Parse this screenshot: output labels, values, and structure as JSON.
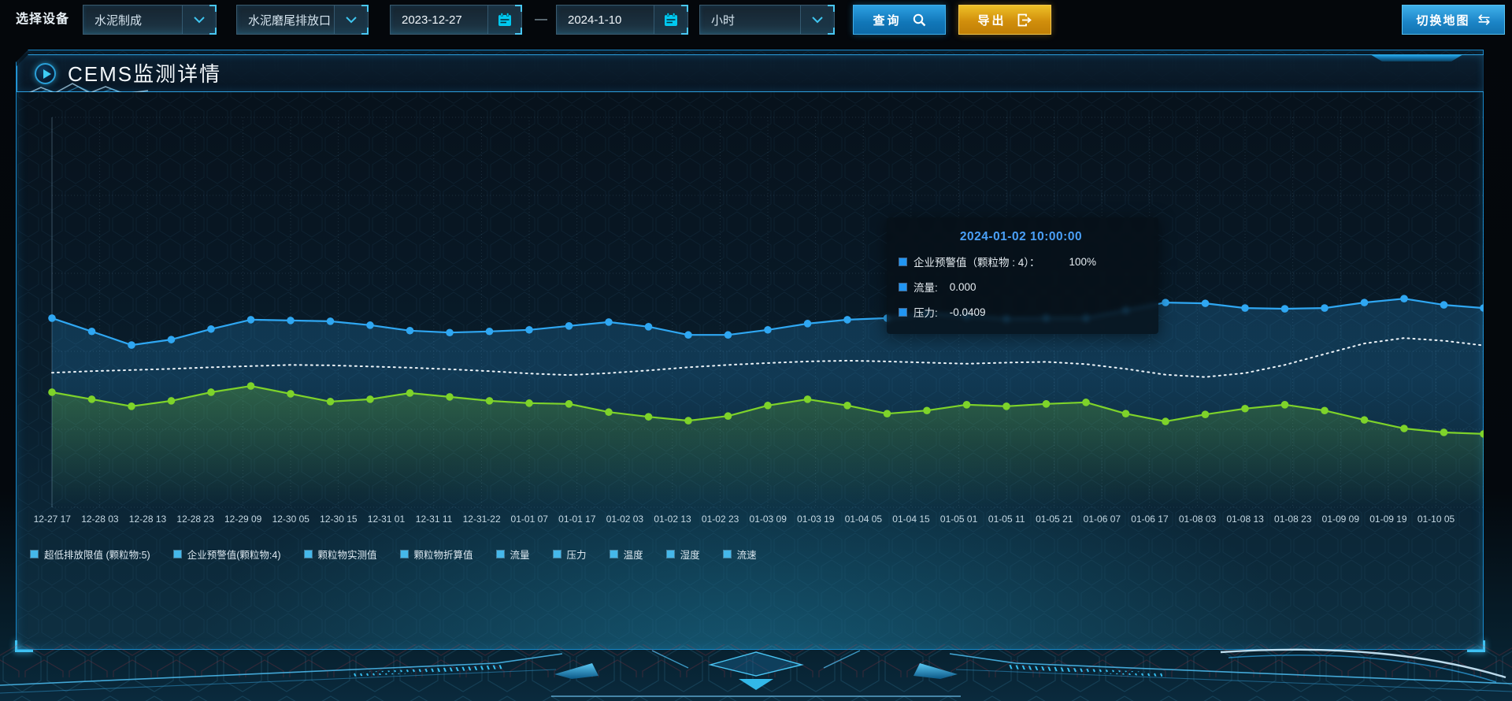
{
  "toolbar": {
    "device_label": "选择设备",
    "device_category": "水泥制成",
    "device_outlet": "水泥磨尾排放口",
    "date_start": "2023-12-27",
    "date_end": "2024-1-10",
    "date_separator": "—",
    "interval": "小时",
    "query_label": "查询",
    "export_label": "导出",
    "switch_map_label": "切换地图",
    "switch_map_icon": "⇆"
  },
  "panel": {
    "title": "CEMS监测详情"
  },
  "tooltip": {
    "title": "2024-01-02 10:00:00",
    "rows": [
      {
        "label": "企业预警值（颗粒物 : 4）：",
        "value": "100%"
      },
      {
        "label": "流量:",
        "value": "0.000"
      },
      {
        "label": "压力:",
        "value": "-0.0409"
      }
    ]
  },
  "legend": [
    "超低排放限值 (颗粒物:5)",
    "企业预警值(颗粒物:4)",
    "颗粒物实测值",
    "颗粒物折算值",
    "流量",
    "压力",
    "温度",
    "湿度",
    "流速"
  ],
  "chart_data": {
    "type": "line",
    "x_labels": [
      "12-27 17",
      "12-28 03",
      "12-28 13",
      "12-28 23",
      "12-29 09",
      "12-30 05",
      "12-30 15",
      "12-31 01",
      "12-31 11",
      "12-31-22",
      "01-01 07",
      "01-01 17",
      "01-02 03",
      "01-02 13",
      "01-02 23",
      "01-03 09",
      "01-03 19",
      "01-04 05",
      "01-04 15",
      "01-05 01",
      "01-05 11",
      "01-05 21",
      "01-06 07",
      "01-06 17",
      "01-08 03",
      "01-08 13",
      "01-08 23",
      "01-09 09",
      "01-09 19",
      "01-10 05"
    ],
    "ylim": [
      0,
      100
    ],
    "grid": "dashed",
    "legend_position": "bottom-left",
    "series": [
      {
        "id": "blue-line",
        "color": "#2fa7f2",
        "dots": true,
        "area": "blue",
        "values": [
          48.5,
          45.1,
          41.6,
          43.0,
          45.7,
          48.1,
          47.9,
          47.7,
          46.7,
          45.3,
          44.8,
          45.1,
          45.5,
          46.5,
          47.5,
          46.3,
          44.2,
          44.2,
          45.5,
          47.1,
          48.1,
          48.5,
          49.7,
          49.1,
          48.3,
          48.5,
          48.5,
          50.5,
          52.5,
          52.3,
          51.1,
          50.9,
          51.1,
          52.5,
          53.5,
          51.9,
          51.1
        ]
      },
      {
        "id": "white-dotted-line",
        "color": "#edf4f9",
        "dash": "2 5",
        "values": [
          34.5,
          34.9,
          35.2,
          35.5,
          35.9,
          36.2,
          36.5,
          36.4,
          36.1,
          35.8,
          35.4,
          34.9,
          34.3,
          33.9,
          34.4,
          35.1,
          35.9,
          36.5,
          37.0,
          37.4,
          37.6,
          37.4,
          37.1,
          36.8,
          37.1,
          37.3,
          36.7,
          35.5,
          34.0,
          33.4,
          34.4,
          36.5,
          39.3,
          42.0,
          43.4,
          42.7,
          41.5
        ]
      },
      {
        "id": "green-line",
        "color": "#7ed32a",
        "dots": true,
        "area": "green",
        "values": [
          29.5,
          27.7,
          25.9,
          27.3,
          29.5,
          31.1,
          29.1,
          27.1,
          27.7,
          29.3,
          28.3,
          27.3,
          26.7,
          26.5,
          24.4,
          23.2,
          22.2,
          23.4,
          26.1,
          27.7,
          26.1,
          24.0,
          24.8,
          26.3,
          25.9,
          26.5,
          26.9,
          24.0,
          22.0,
          23.8,
          25.3,
          26.3,
          24.8,
          22.4,
          20.2,
          19.2,
          18.8
        ]
      }
    ]
  },
  "colors": {
    "accent": "#2fb4f0",
    "blue_line": "#2fa7f2",
    "green_line": "#7ed32a",
    "white_line": "#edf4f9",
    "query_button": "#1585cc",
    "export_button": "#d8960e",
    "tooltip_title": "#4aa0f8",
    "legend_marker": "#45b8ea",
    "panel_border": "#1787c9"
  }
}
